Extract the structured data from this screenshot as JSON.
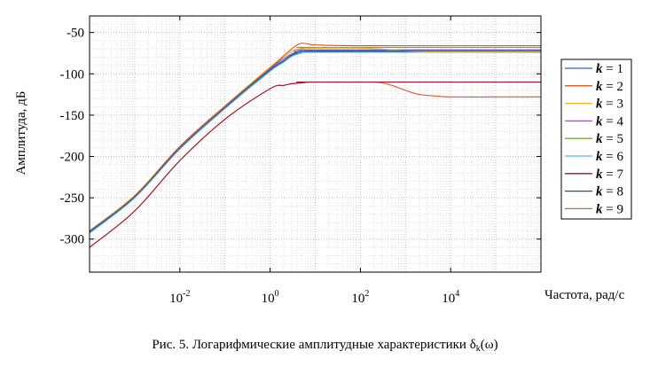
{
  "chart_data": {
    "type": "line",
    "title": "",
    "xlabel": "Частота, рад/с",
    "ylabel": "Амплитуда, дБ",
    "x_scale": "log",
    "xlim": [
      0.0001,
      1000000
    ],
    "ylim": [
      -340,
      -30
    ],
    "x_ticks": [
      {
        "value": 0.01,
        "base": "10",
        "exp": "-2"
      },
      {
        "value": 1,
        "base": "10",
        "exp": "0"
      },
      {
        "value": 100,
        "base": "10",
        "exp": "2"
      },
      {
        "value": 10000,
        "base": "10",
        "exp": "4"
      }
    ],
    "y_ticks": [
      {
        "value": -50,
        "label": "-50"
      },
      {
        "value": -100,
        "label": "-100"
      },
      {
        "value": -150,
        "label": "-150"
      },
      {
        "value": -200,
        "label": "-200"
      },
      {
        "value": -250,
        "label": "-250"
      },
      {
        "value": -300,
        "label": "-300"
      }
    ],
    "grid": true,
    "legend_position": "right",
    "legend_var": "k",
    "series": [
      {
        "name": "= 1",
        "color": "#2a62b8",
        "x": [
          0.0001,
          0.001,
          0.01,
          0.1,
          1,
          2,
          3,
          5,
          7,
          10,
          100,
          1000,
          10000,
          1000000
        ],
        "y": [
          -291,
          -249,
          -190,
          -141,
          -95,
          -84,
          -77,
          -73,
          -72,
          -72,
          -72,
          -72,
          -72,
          -72
        ]
      },
      {
        "name": "= 2",
        "color": "#d95319",
        "x": [
          0.0001,
          0.001,
          0.01,
          0.1,
          1,
          2,
          3,
          4,
          5,
          7,
          10,
          100,
          1000000
        ],
        "y": [
          -290,
          -248,
          -188,
          -139,
          -93,
          -78,
          -70,
          -65,
          -63,
          -64,
          -65,
          -66,
          -66
        ]
      },
      {
        "name": "= 3",
        "color": "#edb120",
        "x": [
          0.0001,
          0.001,
          0.01,
          0.1,
          1,
          2,
          3,
          5,
          10,
          100,
          300,
          1000,
          3000,
          10000,
          1000000
        ],
        "y": [
          -290,
          -247,
          -188,
          -139,
          -92,
          -80,
          -73,
          -70,
          -69,
          -69,
          -70,
          -72,
          -73,
          -73,
          -73
        ]
      },
      {
        "name": "= 4",
        "color": "#9b59b6",
        "x": [
          0.0001,
          0.001,
          0.01,
          0.1,
          1,
          2,
          3,
          5,
          10,
          1000000
        ],
        "y": [
          -291,
          -248,
          -189,
          -140,
          -94,
          -82,
          -76,
          -72,
          -71,
          -71
        ]
      },
      {
        "name": "= 5",
        "color": "#77ac30",
        "x": [
          0.0001,
          0.001,
          0.01,
          0.1,
          1,
          2,
          3,
          5,
          7,
          10,
          1000000
        ],
        "y": [
          -291,
          -248,
          -188,
          -139,
          -93,
          -80,
          -73,
          -69,
          -68,
          -68,
          -68
        ]
      },
      {
        "name": "= 6",
        "color": "#4dbeee",
        "x": [
          0.0001,
          0.001,
          0.01,
          0.1,
          1,
          2,
          3,
          5,
          10,
          1000000
        ],
        "y": [
          -293,
          -250,
          -191,
          -142,
          -97,
          -86,
          -79,
          -75,
          -74,
          -74
        ]
      },
      {
        "name": "= 7",
        "color": "#a2142f",
        "x": [
          0.0001,
          0.001,
          0.01,
          0.1,
          1,
          2,
          3,
          5,
          7,
          10,
          1000000
        ],
        "y": [
          -310,
          -266,
          -205,
          -155,
          -118,
          -114,
          -112,
          -111,
          -110,
          -110,
          -110
        ]
      },
      {
        "name": "= 8",
        "color": "#1f4e9c",
        "x": [
          0.0001,
          0.001,
          0.01,
          0.1,
          1,
          2,
          3,
          5,
          10,
          1000000
        ],
        "y": [
          -292,
          -249,
          -190,
          -141,
          -96,
          -85,
          -78,
          -74,
          -73,
          -73
        ]
      },
      {
        "name": "= 9",
        "color": "#e05a2b",
        "x": [
          0.0001,
          0.001,
          0.01,
          0.1,
          1,
          2,
          3,
          5,
          7,
          10,
          30,
          100,
          200,
          300,
          500,
          1000,
          2000,
          5000,
          10000,
          100000,
          1000000
        ],
        "y": [
          -310,
          -266,
          -205,
          -155,
          -118,
          -114,
          -112,
          -111,
          -110,
          -110,
          -110,
          -110,
          -110,
          -111,
          -114,
          -120,
          -125,
          -127,
          -128,
          -128,
          -128
        ]
      }
    ]
  },
  "caption": {
    "prefix": "Рис. 5. Логарифмические амплитудные характеристики δ",
    "sub": "k",
    "suffix": "(ω)"
  }
}
